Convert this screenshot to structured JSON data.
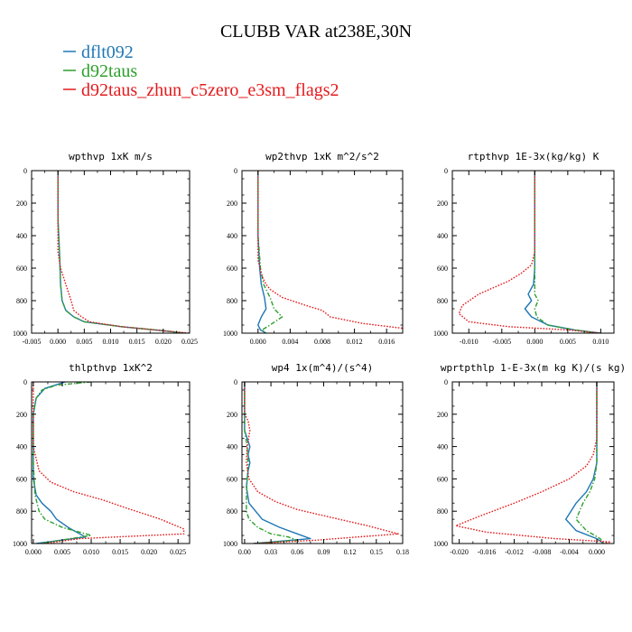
{
  "figure": {
    "title": "CLUBB VAR at238E,30N",
    "legend": [
      {
        "label": "dflt092",
        "color": "#1f77b4",
        "dash": "solid"
      },
      {
        "label": "d92taus",
        "color": "#2ca02c",
        "dash": "dashdot"
      },
      {
        "label": "d92taus_zhun_c5zero_e3sm_flags2",
        "color": "#e41a1c",
        "dash": "dotted"
      }
    ]
  },
  "chart_data": [
    {
      "type": "line",
      "title": "wpthvp  1xK m/s",
      "xlim": [
        -0.005,
        0.025
      ],
      "xticks": [
        -0.005,
        0,
        0.005,
        0.01,
        0.015,
        0.02,
        0.025
      ],
      "xticklabels": [
        "-0.005",
        "0.000",
        "0.005",
        "0.010",
        "0.015",
        "0.020",
        "0.025"
      ],
      "ylim": [
        0,
        1000
      ],
      "yticks": [
        0,
        200,
        400,
        600,
        800,
        1000
      ],
      "yticklabels": [
        "0",
        "200",
        "400",
        "600",
        "800",
        "1000"
      ],
      "series": [
        {
          "name": "dflt092",
          "x": [
            0,
            0,
            0.0003,
            0.0005,
            0.0008,
            0.0015,
            0.003,
            0.005,
            0.012,
            0.02,
            0.024
          ],
          "y": [
            0,
            300,
            500,
            700,
            800,
            860,
            900,
            930,
            960,
            985,
            1000
          ]
        },
        {
          "name": "d92taus",
          "x": [
            0,
            0,
            0.0003,
            0.0005,
            0.0008,
            0.0015,
            0.003,
            0.005,
            0.012,
            0.02,
            0.024
          ],
          "y": [
            0,
            300,
            500,
            700,
            800,
            860,
            900,
            930,
            960,
            985,
            1000
          ]
        },
        {
          "name": "d92taus_zhun_c5zero_e3sm_flags2",
          "x": [
            0,
            0,
            0.0005,
            0.0015,
            0.0025,
            0.003,
            0.0045,
            0.006,
            0.012,
            0.02,
            0.025
          ],
          "y": [
            0,
            500,
            600,
            700,
            800,
            860,
            900,
            930,
            960,
            985,
            1000
          ]
        }
      ]
    },
    {
      "type": "line",
      "title": "wp2thvp  1xK m^2/s^2",
      "xlim": [
        -0.002,
        0.018
      ],
      "xticks": [
        0,
        0.004,
        0.008,
        0.012,
        0.016
      ],
      "xticklabels": [
        "0.000",
        "0.004",
        "0.008",
        "0.012",
        "0.016"
      ],
      "ylim": [
        0,
        1000
      ],
      "yticks": [
        0,
        200,
        400,
        600,
        800,
        1000
      ],
      "yticklabels": [
        "0",
        "200",
        "400",
        "600",
        "800",
        "1000"
      ],
      "series": [
        {
          "name": "dflt092",
          "x": [
            0,
            0,
            0.0002,
            0.0004,
            0.0008,
            0.001,
            0.0004,
            0,
            0.0003,
            0.001
          ],
          "y": [
            0,
            400,
            600,
            700,
            780,
            850,
            900,
            950,
            980,
            1000
          ]
        },
        {
          "name": "d92taus",
          "x": [
            0,
            0,
            0.0003,
            0.0007,
            0.0015,
            0.002,
            0.003,
            0.0015,
            0.0005,
            0.001
          ],
          "y": [
            0,
            400,
            600,
            700,
            780,
            850,
            900,
            950,
            980,
            1000
          ]
        },
        {
          "name": "d92taus_zhun_c5zero_e3sm_flags2",
          "x": [
            0,
            0,
            0.0005,
            0.001,
            0.0015,
            0.003,
            0.006,
            0.008,
            0.009,
            0.013,
            0.018
          ],
          "y": [
            0,
            550,
            650,
            700,
            730,
            780,
            830,
            860,
            900,
            940,
            970
          ]
        }
      ]
    },
    {
      "type": "line",
      "title": "rtpthvp  1E-3x(kg/kg) K",
      "xlim": [
        -0.0125,
        0.012
      ],
      "xticks": [
        -0.01,
        -0.005,
        0,
        0.005,
        0.01
      ],
      "xticklabels": [
        "-0.010",
        "-0.005",
        "0.000",
        "0.005",
        "0.010"
      ],
      "ylim": [
        0,
        1000
      ],
      "yticks": [
        0,
        200,
        400,
        600,
        800,
        1000
      ],
      "yticklabels": [
        "0",
        "200",
        "400",
        "600",
        "800",
        "1000"
      ],
      "series": [
        {
          "name": "dflt092",
          "x": [
            0,
            0,
            -0.0002,
            -0.001,
            -0.0005,
            -0.0015,
            -0.0005,
            0.002,
            0.006,
            0.01
          ],
          "y": [
            0,
            600,
            700,
            760,
            800,
            850,
            900,
            950,
            980,
            1000
          ]
        },
        {
          "name": "d92taus",
          "x": [
            0,
            0,
            0,
            0,
            0.0005,
            0,
            0.0003,
            0.002,
            0.006,
            0.0095
          ],
          "y": [
            0,
            600,
            700,
            760,
            800,
            850,
            900,
            950,
            980,
            1000
          ]
        },
        {
          "name": "d92taus_zhun_c5zero_e3sm_flags2",
          "x": [
            0,
            0,
            -0.0005,
            -0.002,
            -0.004,
            -0.0085,
            -0.011,
            -0.0115,
            -0.01,
            -0.004,
            0.005,
            0.01
          ],
          "y": [
            0,
            500,
            580,
            630,
            680,
            760,
            830,
            880,
            930,
            960,
            980,
            1000
          ]
        }
      ]
    },
    {
      "type": "line",
      "title": "thlpthvp  1xK^2",
      "xlim": [
        -0.0003,
        0.027
      ],
      "xticks": [
        0,
        0.005,
        0.01,
        0.015,
        0.02,
        0.025
      ],
      "xticklabels": [
        "0.000",
        "0.005",
        "0.010",
        "0.015",
        "0.020",
        "0.025"
      ],
      "ylim": [
        0,
        1000
      ],
      "yticks": [
        0,
        200,
        400,
        600,
        800,
        1000
      ],
      "yticklabels": [
        "0",
        "200",
        "400",
        "600",
        "800",
        "1000"
      ],
      "series": [
        {
          "name": "dflt092",
          "x": [
            0.0055,
            0.002,
            0.0005,
            0,
            0,
            0,
            0.0005,
            0.0015,
            0.003,
            0.004,
            0.006,
            0.009,
            0.0005
          ],
          "y": [
            0,
            40,
            100,
            200,
            500,
            600,
            700,
            750,
            800,
            850,
            900,
            960,
            1000
          ]
        },
        {
          "name": "d92taus",
          "x": [
            0.01,
            0.004,
            0.0015,
            0.0005,
            0,
            0,
            0.0003,
            0.001,
            0.002,
            0.005,
            0.01,
            0.001
          ],
          "y": [
            0,
            20,
            50,
            100,
            200,
            500,
            700,
            800,
            850,
            900,
            950,
            1000
          ]
        },
        {
          "name": "d92taus_zhun_c5zero_e3sm_flags2",
          "x": [
            0,
            0,
            0,
            0.001,
            0.003,
            0.007,
            0.012,
            0.016,
            0.022,
            0.026,
            0.026,
            0.008,
            0.002
          ],
          "y": [
            0,
            100,
            400,
            550,
            620,
            680,
            730,
            780,
            850,
            910,
            940,
            970,
            1000
          ]
        }
      ]
    },
    {
      "type": "line",
      "title": "wp4  1x(m^4)/(s^4)",
      "xlim": [
        -0.003,
        0.18
      ],
      "xticks": [
        0,
        0.03,
        0.06,
        0.09,
        0.12,
        0.15,
        0.18
      ],
      "xticklabels": [
        "0.00",
        "0.03",
        "0.06",
        "0.09",
        "0.12",
        "0.15",
        "0.18"
      ],
      "ylim": [
        0,
        1000
      ],
      "yticks": [
        0,
        200,
        400,
        600,
        800,
        1000
      ],
      "yticklabels": [
        "0",
        "200",
        "400",
        "600",
        "800",
        "1000"
      ],
      "series": [
        {
          "name": "dflt092",
          "x": [
            0,
            0,
            0.003,
            0.006,
            0.004,
            0.006,
            0.004,
            0.002,
            0.005,
            0.02,
            0.04,
            0.06,
            0.075,
            0.01
          ],
          "y": [
            0,
            300,
            350,
            400,
            450,
            500,
            550,
            650,
            750,
            850,
            900,
            940,
            970,
            1000
          ]
        },
        {
          "name": "d92taus",
          "x": [
            0,
            0,
            0.003,
            0.004,
            0.003,
            0.002,
            0.002,
            0.005,
            0.015,
            0.03,
            0.05,
            0.06,
            0.01
          ],
          "y": [
            0,
            300,
            400,
            500,
            600,
            700,
            800,
            850,
            900,
            940,
            960,
            980,
            1000
          ]
        },
        {
          "name": "d92taus_zhun_c5zero_e3sm_flags2",
          "x": [
            0,
            0,
            0.004,
            0.006,
            0.003,
            0.002,
            0.005,
            0.015,
            0.035,
            0.06,
            0.1,
            0.14,
            0.175,
            0.08,
            0.01
          ],
          "y": [
            0,
            200,
            240,
            300,
            400,
            500,
            600,
            680,
            740,
            790,
            840,
            890,
            940,
            980,
            1000
          ]
        }
      ]
    },
    {
      "type": "line",
      "title": "wprtpthlp  1-E-3x(m kg K)/(s kg)",
      "xlim": [
        -0.021,
        0.0025
      ],
      "xticks": [
        -0.02,
        -0.016,
        -0.012,
        -0.008,
        -0.004,
        0
      ],
      "xticklabels": [
        "-0.020",
        "-0.016",
        "-0.012",
        "-0.008",
        "-0.004",
        "0.000"
      ],
      "ylim": [
        0,
        1000
      ],
      "yticks": [
        0,
        200,
        400,
        600,
        800,
        1000
      ],
      "yticklabels": [
        "0",
        "200",
        "400",
        "600",
        "800",
        "1000"
      ],
      "series": [
        {
          "name": "dflt092",
          "x": [
            0,
            0,
            0,
            -0.0005,
            -0.0015,
            -0.003,
            -0.0045,
            -0.003,
            0,
            0.001
          ],
          "y": [
            0,
            400,
            500,
            600,
            680,
            750,
            850,
            920,
            970,
            1000
          ]
        },
        {
          "name": "d92taus",
          "x": [
            0,
            0,
            0,
            -0.0003,
            -0.001,
            -0.002,
            -0.003,
            -0.0015,
            0.0005,
            0.001
          ],
          "y": [
            0,
            400,
            500,
            600,
            680,
            750,
            850,
            920,
            970,
            1000
          ]
        },
        {
          "name": "d92taus_zhun_c5zero_e3sm_flags2",
          "x": [
            0,
            0,
            -0.0005,
            -0.0015,
            -0.004,
            -0.008,
            -0.012,
            -0.017,
            -0.0205,
            -0.016,
            -0.006,
            0.002,
            0.001
          ],
          "y": [
            0,
            350,
            450,
            520,
            600,
            680,
            750,
            830,
            890,
            930,
            970,
            990,
            1000
          ]
        }
      ]
    }
  ]
}
